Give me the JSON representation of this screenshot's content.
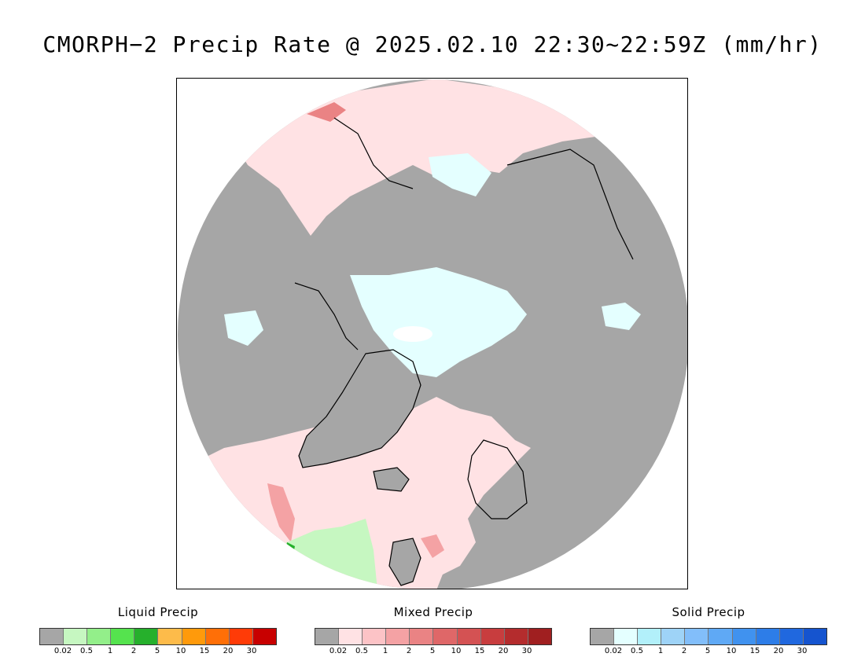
{
  "title": "CMORPH−2 Precip Rate @ 2025.02.10 22:30~22:59Z (mm/hr)",
  "map": {
    "projection": "north polar stereographic",
    "background_color": "#a6a6a6",
    "coastline_color": "#000000"
  },
  "legends": [
    {
      "title": "Liquid Precip",
      "colors": [
        "#a6a6a6",
        "#c6f7c1",
        "#93ef8a",
        "#55e34e",
        "#26b02c",
        "#fdbb4a",
        "#ff9a0b",
        "#ff6f07",
        "#ff3b07",
        "#c80000"
      ],
      "ticks": [
        "0.02",
        "0.5",
        "1",
        "2",
        "5",
        "10",
        "15",
        "20",
        "30"
      ]
    },
    {
      "title": "Mixed Precip",
      "colors": [
        "#a6a6a6",
        "#ffe2e4",
        "#fcc3c6",
        "#f4a2a4",
        "#ea8384",
        "#df6768",
        "#d45253",
        "#c83d3e",
        "#b42c2d",
        "#a01f20"
      ],
      "ticks": [
        "0.02",
        "0.5",
        "1",
        "2",
        "5",
        "10",
        "15",
        "20",
        "30"
      ]
    },
    {
      "title": "Solid Precip",
      "colors": [
        "#a6a6a6",
        "#e4ffff",
        "#b2f0fa",
        "#9ed3f7",
        "#82befa",
        "#5fa9f5",
        "#4092ef",
        "#2d7de8",
        "#2068df",
        "#1554cf"
      ],
      "ticks": [
        "0.02",
        "0.5",
        "1",
        "2",
        "5",
        "10",
        "15",
        "20",
        "30"
      ]
    }
  ]
}
